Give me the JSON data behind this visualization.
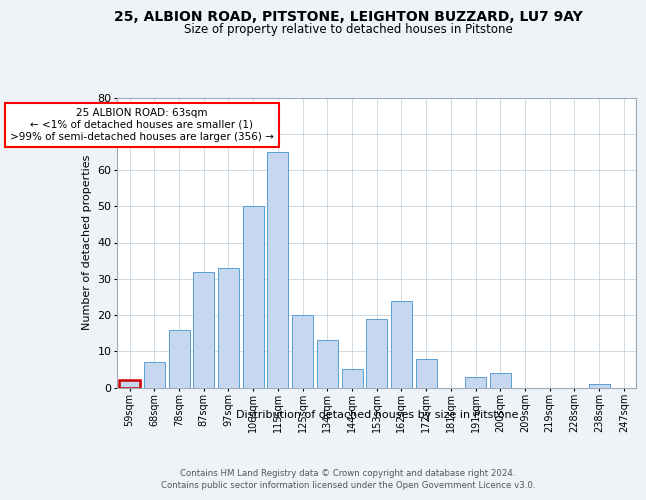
{
  "title1": "25, ALBION ROAD, PITSTONE, LEIGHTON BUZZARD, LU7 9AY",
  "title2": "Size of property relative to detached houses in Pitstone",
  "xlabel": "Distribution of detached houses by size in Pitstone",
  "ylabel": "Number of detached properties",
  "categories": [
    "59sqm",
    "68sqm",
    "78sqm",
    "87sqm",
    "97sqm",
    "106sqm",
    "115sqm",
    "125sqm",
    "134sqm",
    "144sqm",
    "153sqm",
    "162sqm",
    "172sqm",
    "181sqm",
    "191sqm",
    "200sqm",
    "209sqm",
    "219sqm",
    "228sqm",
    "238sqm",
    "247sqm"
  ],
  "values": [
    2,
    7,
    16,
    32,
    33,
    50,
    65,
    20,
    13,
    5,
    19,
    24,
    8,
    0,
    3,
    4,
    0,
    0,
    0,
    1,
    0
  ],
  "bar_color": "#c5d8f0",
  "bar_edge_color": "#5a9fd4",
  "highlight_index": 0,
  "highlight_color": "#cc0000",
  "annotation_text": "25 ALBION ROAD: 63sqm\n← <1% of detached houses are smaller (1)\n>99% of semi-detached houses are larger (356) →",
  "ylim": [
    0,
    80
  ],
  "yticks": [
    0,
    10,
    20,
    30,
    40,
    50,
    60,
    70,
    80
  ],
  "footer1": "Contains HM Land Registry data © Crown copyright and database right 2024.",
  "footer2": "Contains public sector information licensed under the Open Government Licence v3.0.",
  "bg_color": "#eef3f8",
  "plot_bg_color": "#ffffff"
}
